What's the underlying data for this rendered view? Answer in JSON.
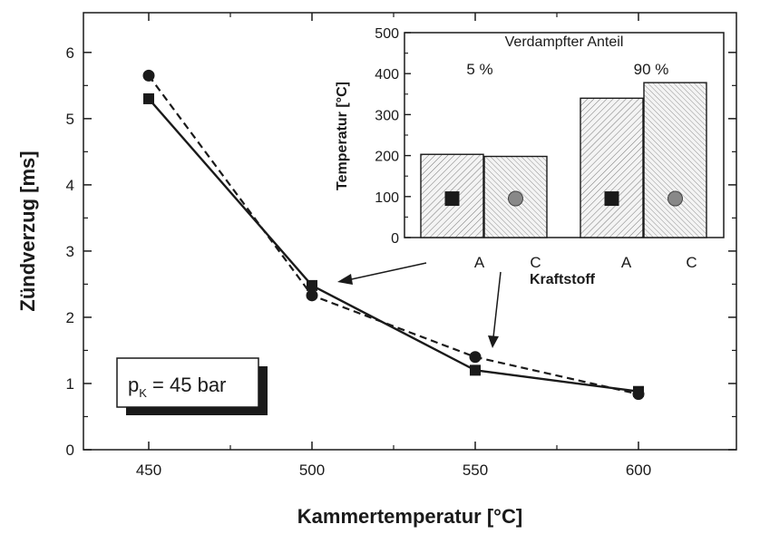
{
  "chart_data": [
    {
      "type": "line",
      "xlabel": "Kammertemperatur [°C]",
      "ylabel": "Zündverzug [ms]",
      "xlim": [
        430,
        630
      ],
      "ylim": [
        0,
        6.6
      ],
      "x_ticks": [
        450,
        500,
        550,
        600
      ],
      "y_ticks": [
        0,
        1,
        2,
        3,
        4,
        5,
        6
      ],
      "grid": false,
      "series": [
        {
          "marker": "square",
          "line": "solid",
          "x": [
            450,
            500,
            550,
            600
          ],
          "y": [
            5.3,
            2.48,
            1.2,
            0.88
          ]
        },
        {
          "marker": "circle",
          "line": "dashed",
          "x": [
            450,
            500,
            550,
            600
          ],
          "y": [
            5.65,
            2.33,
            1.4,
            0.84
          ]
        }
      ],
      "annotation_box": {
        "symbol": "p",
        "subscript": "K",
        "text": " = 45 bar"
      }
    },
    {
      "type": "bar",
      "title": "Verdampfter Anteil",
      "ylabel": "Temperatur [°C]",
      "ylim": [
        0,
        500
      ],
      "y_ticks": [
        0,
        100,
        200,
        300,
        400,
        500
      ],
      "categories": [
        "A",
        "C",
        "A",
        "C"
      ],
      "xlabel": "Kraftstoff",
      "groups": [
        "5 %",
        "90 %"
      ],
      "values": [
        203,
        198,
        340,
        378
      ],
      "markers": [
        "square",
        "circle",
        "square",
        "circle"
      ]
    }
  ]
}
